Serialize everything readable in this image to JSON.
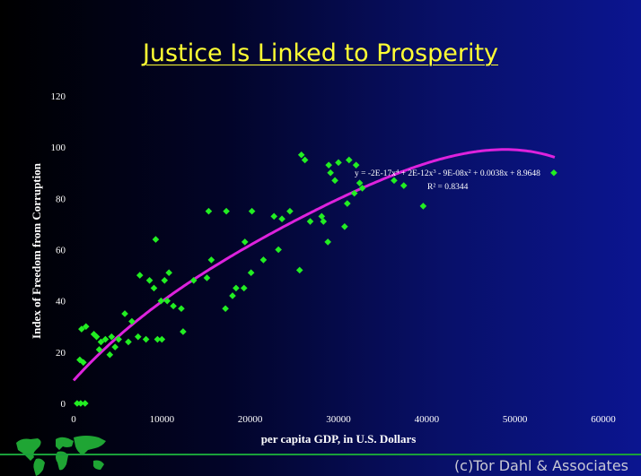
{
  "slide": {
    "title": "Justice Is Linked to Prosperity",
    "copyright": "(c)Tor Dahl & Associates"
  },
  "colors": {
    "title": "#ffff33",
    "points": "#22ee22",
    "trendline": "#dd22dd",
    "text": "#ffffff",
    "footer_line": "#1aa03a",
    "map": "#1fa534"
  },
  "chart_data": {
    "type": "scatter",
    "xlabel": "per capita GDP, in U.S. Dollars",
    "ylabel": "Index of Freedom from Corruption",
    "xlim": [
      0,
      60000
    ],
    "ylim": [
      0,
      120
    ],
    "xticks": [
      0,
      10000,
      20000,
      30000,
      40000,
      50000,
      60000
    ],
    "yticks": [
      0,
      20,
      40,
      60,
      80,
      100,
      120
    ],
    "grid": false,
    "legend": "none",
    "trendline": {
      "type": "polynomial",
      "equation_parts": [
        "y = -2E-17x",
        "4",
        " + 2E-12x",
        "3",
        " - 9E-08x",
        "2",
        " + 0.0038x + 8.9648"
      ],
      "r_squared": "R² = 0.8344",
      "x_range": [
        0,
        54500
      ]
    },
    "points": [
      [
        400,
        0
      ],
      [
        800,
        0
      ],
      [
        1300,
        0
      ],
      [
        700,
        17
      ],
      [
        1100,
        16
      ],
      [
        900,
        29
      ],
      [
        1400,
        30
      ],
      [
        2300,
        27
      ],
      [
        2600,
        26
      ],
      [
        3100,
        24
      ],
      [
        2900,
        21
      ],
      [
        3600,
        25
      ],
      [
        4100,
        19
      ],
      [
        4300,
        26
      ],
      [
        4700,
        22
      ],
      [
        5100,
        25
      ],
      [
        5800,
        35
      ],
      [
        6200,
        24
      ],
      [
        6600,
        32
      ],
      [
        7300,
        26
      ],
      [
        7500,
        50
      ],
      [
        8200,
        25
      ],
      [
        8600,
        48
      ],
      [
        9100,
        45
      ],
      [
        9300,
        64
      ],
      [
        9500,
        25
      ],
      [
        9900,
        40
      ],
      [
        10000,
        25
      ],
      [
        10300,
        48
      ],
      [
        10600,
        40
      ],
      [
        10800,
        51
      ],
      [
        11300,
        38
      ],
      [
        12200,
        37
      ],
      [
        12400,
        28
      ],
      [
        13600,
        48
      ],
      [
        15100,
        49
      ],
      [
        15300,
        75
      ],
      [
        15600,
        56
      ],
      [
        17200,
        37
      ],
      [
        17300,
        75
      ],
      [
        18000,
        42
      ],
      [
        18400,
        45
      ],
      [
        19300,
        45
      ],
      [
        19400,
        63
      ],
      [
        20100,
        51
      ],
      [
        20200,
        75
      ],
      [
        21500,
        56
      ],
      [
        22700,
        73
      ],
      [
        23200,
        60
      ],
      [
        23600,
        72
      ],
      [
        24500,
        75
      ],
      [
        25600,
        52
      ],
      [
        25800,
        97
      ],
      [
        26200,
        95
      ],
      [
        26800,
        71
      ],
      [
        28100,
        73
      ],
      [
        28300,
        71
      ],
      [
        28800,
        63
      ],
      [
        28900,
        93
      ],
      [
        29100,
        90
      ],
      [
        29600,
        87
      ],
      [
        30000,
        94
      ],
      [
        30700,
        69
      ],
      [
        31000,
        78
      ],
      [
        31200,
        95
      ],
      [
        31800,
        82
      ],
      [
        32000,
        93
      ],
      [
        32400,
        86
      ],
      [
        32700,
        84
      ],
      [
        36300,
        87
      ],
      [
        37400,
        85
      ],
      [
        39600,
        77
      ],
      [
        54400,
        90
      ]
    ]
  }
}
